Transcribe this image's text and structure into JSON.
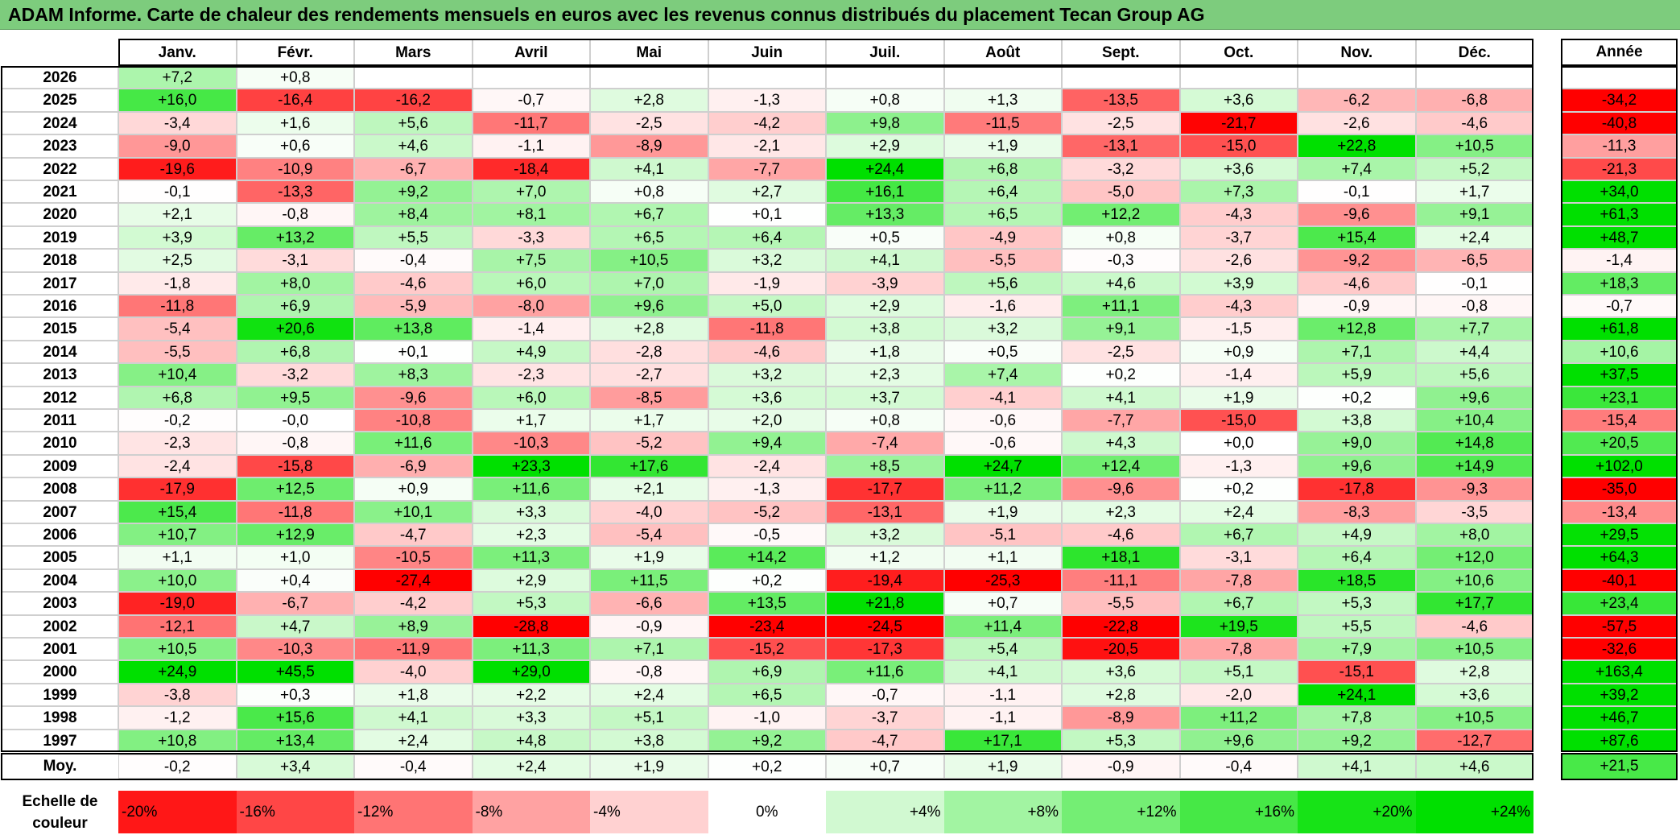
{
  "title": "ADAM Informe. Carte de chaleur des rendements mensuels en euros avec les revenus connus distribués du placement Tecan Group AG",
  "chart_data": {
    "type": "heatmap",
    "columns": [
      "Janv.",
      "Févr.",
      "Mars",
      "Avril",
      "Mai",
      "Juin",
      "Juil.",
      "Août",
      "Sept.",
      "Oct.",
      "Nov.",
      "Déc."
    ],
    "annual_header": "Année",
    "rows": [
      {
        "year": "2026",
        "values": [
          "+7,2",
          "+0,8",
          "",
          "",
          "",
          "",
          "",
          "",
          "",
          "",
          "",
          ""
        ],
        "annual": ""
      },
      {
        "year": "2025",
        "values": [
          "+16,0",
          "-16,4",
          "-16,2",
          "-0,7",
          "+2,8",
          "-1,3",
          "+0,8",
          "+1,3",
          "-13,5",
          "+3,6",
          "-6,2",
          "-6,8"
        ],
        "annual": "-34,2"
      },
      {
        "year": "2024",
        "values": [
          "-3,4",
          "+1,6",
          "+5,6",
          "-11,7",
          "-2,5",
          "-4,2",
          "+9,8",
          "-11,5",
          "-2,5",
          "-21,7",
          "-2,6",
          "-4,6"
        ],
        "annual": "-40,8"
      },
      {
        "year": "2023",
        "values": [
          "-9,0",
          "+0,6",
          "+4,6",
          "-1,1",
          "-8,9",
          "-2,1",
          "+2,9",
          "+1,9",
          "-13,1",
          "-15,0",
          "+22,8",
          "+10,5"
        ],
        "annual": "-11,3"
      },
      {
        "year": "2022",
        "values": [
          "-19,6",
          "-10,9",
          "-6,7",
          "-18,4",
          "+4,1",
          "-7,7",
          "+24,4",
          "+6,8",
          "-3,2",
          "+3,6",
          "+7,4",
          "+5,2"
        ],
        "annual": "-21,3"
      },
      {
        "year": "2021",
        "values": [
          "-0,1",
          "-13,3",
          "+9,2",
          "+7,0",
          "+0,8",
          "+2,7",
          "+16,1",
          "+6,4",
          "-5,0",
          "+7,3",
          "-0,1",
          "+1,7"
        ],
        "annual": "+34,0"
      },
      {
        "year": "2020",
        "values": [
          "+2,1",
          "-0,8",
          "+8,4",
          "+8,1",
          "+6,7",
          "+0,1",
          "+13,3",
          "+6,5",
          "+12,2",
          "-4,3",
          "-9,6",
          "+9,1"
        ],
        "annual": "+61,3"
      },
      {
        "year": "2019",
        "values": [
          "+3,9",
          "+13,2",
          "+5,5",
          "-3,3",
          "+6,5",
          "+6,4",
          "+0,5",
          "-4,9",
          "+0,8",
          "-3,7",
          "+15,4",
          "+2,4"
        ],
        "annual": "+48,7"
      },
      {
        "year": "2018",
        "values": [
          "+2,5",
          "-3,1",
          "-0,4",
          "+7,5",
          "+10,5",
          "+3,2",
          "+4,1",
          "-5,5",
          "-0,3",
          "-2,6",
          "-9,2",
          "-6,5"
        ],
        "annual": "-1,4"
      },
      {
        "year": "2017",
        "values": [
          "-1,8",
          "+8,0",
          "-4,6",
          "+6,0",
          "+7,0",
          "-1,9",
          "-3,9",
          "+5,6",
          "+4,6",
          "+3,9",
          "-4,6",
          "-0,1"
        ],
        "annual": "+18,3"
      },
      {
        "year": "2016",
        "values": [
          "-11,8",
          "+6,9",
          "-5,9",
          "-8,0",
          "+9,6",
          "+5,0",
          "+2,9",
          "-1,6",
          "+11,1",
          "-4,3",
          "-0,9",
          "-0,8"
        ],
        "annual": "-0,7"
      },
      {
        "year": "2015",
        "values": [
          "-5,4",
          "+20,6",
          "+13,8",
          "-1,4",
          "+2,8",
          "-11,8",
          "+3,8",
          "+3,2",
          "+9,1",
          "-1,5",
          "+12,8",
          "+7,7"
        ],
        "annual": "+61,8"
      },
      {
        "year": "2014",
        "values": [
          "-5,5",
          "+6,8",
          "+0,1",
          "+4,9",
          "-2,8",
          "-4,6",
          "+1,8",
          "+0,5",
          "-2,5",
          "+0,9",
          "+7,1",
          "+4,4"
        ],
        "annual": "+10,6"
      },
      {
        "year": "2013",
        "values": [
          "+10,4",
          "-3,2",
          "+8,3",
          "-2,3",
          "-2,7",
          "+3,2",
          "+2,3",
          "+7,4",
          "+0,2",
          "-1,4",
          "+5,9",
          "+5,6"
        ],
        "annual": "+37,5"
      },
      {
        "year": "2012",
        "values": [
          "+6,8",
          "+9,5",
          "-9,6",
          "+6,0",
          "-8,5",
          "+3,6",
          "+3,7",
          "-4,1",
          "+4,1",
          "+1,9",
          "+0,2",
          "+9,6"
        ],
        "annual": "+23,1"
      },
      {
        "year": "2011",
        "values": [
          "-0,2",
          "-0,0",
          "-10,8",
          "+1,7",
          "+1,7",
          "+2,0",
          "+0,8",
          "-0,6",
          "-7,7",
          "-15,0",
          "+3,8",
          "+10,4"
        ],
        "annual": "-15,4"
      },
      {
        "year": "2010",
        "values": [
          "-2,3",
          "-0,8",
          "+11,6",
          "-10,3",
          "-5,2",
          "+9,4",
          "-7,4",
          "-0,6",
          "+4,3",
          "+0,0",
          "+9,0",
          "+14,8"
        ],
        "annual": "+20,5"
      },
      {
        "year": "2009",
        "values": [
          "-2,4",
          "-15,8",
          "-6,9",
          "+23,3",
          "+17,6",
          "-2,4",
          "+8,5",
          "+24,7",
          "+12,4",
          "-1,3",
          "+9,6",
          "+14,9"
        ],
        "annual": "+102,0"
      },
      {
        "year": "2008",
        "values": [
          "-17,9",
          "+12,5",
          "+0,9",
          "+11,6",
          "+2,1",
          "-1,3",
          "-17,7",
          "+11,2",
          "-9,6",
          "+0,2",
          "-17,8",
          "-9,3"
        ],
        "annual": "-35,0"
      },
      {
        "year": "2007",
        "values": [
          "+15,4",
          "-11,8",
          "+10,1",
          "+3,3",
          "-4,0",
          "-5,2",
          "-13,1",
          "+1,9",
          "+2,3",
          "+2,4",
          "-8,3",
          "-3,5"
        ],
        "annual": "-13,4"
      },
      {
        "year": "2006",
        "values": [
          "+10,7",
          "+12,9",
          "-4,7",
          "+2,3",
          "-5,4",
          "-0,5",
          "+3,2",
          "-5,1",
          "-4,6",
          "+6,7",
          "+4,9",
          "+8,0"
        ],
        "annual": "+29,5"
      },
      {
        "year": "2005",
        "values": [
          "+1,1",
          "+1,0",
          "-10,5",
          "+11,3",
          "+1,9",
          "+14,2",
          "+1,2",
          "+1,1",
          "+18,1",
          "-3,1",
          "+6,4",
          "+12,0"
        ],
        "annual": "+64,3"
      },
      {
        "year": "2004",
        "values": [
          "+10,0",
          "+0,4",
          "-27,4",
          "+2,9",
          "+11,5",
          "+0,2",
          "-19,4",
          "-25,3",
          "-11,1",
          "-7,8",
          "+18,5",
          "+10,6"
        ],
        "annual": "-40,1"
      },
      {
        "year": "2003",
        "values": [
          "-19,0",
          "-6,7",
          "-4,2",
          "+5,3",
          "-6,6",
          "+13,5",
          "+21,8",
          "+0,7",
          "-5,5",
          "+6,7",
          "+5,3",
          "+17,7"
        ],
        "annual": "+23,4"
      },
      {
        "year": "2002",
        "values": [
          "-12,1",
          "+4,7",
          "+8,9",
          "-28,8",
          "-0,9",
          "-23,4",
          "-24,5",
          "+11,4",
          "-22,8",
          "+19,5",
          "+5,5",
          "-4,6"
        ],
        "annual": "-57,5"
      },
      {
        "year": "2001",
        "values": [
          "+10,5",
          "-10,3",
          "-11,9",
          "+11,3",
          "+7,1",
          "-15,2",
          "-17,3",
          "+5,4",
          "-20,5",
          "-7,8",
          "+7,9",
          "+10,5"
        ],
        "annual": "-32,6"
      },
      {
        "year": "2000",
        "values": [
          "+24,9",
          "+45,5",
          "-4,0",
          "+29,0",
          "-0,8",
          "+6,9",
          "+11,6",
          "+4,1",
          "+3,6",
          "+5,1",
          "-15,1",
          "+2,8"
        ],
        "annual": "+163,4"
      },
      {
        "year": "1999",
        "values": [
          "-3,8",
          "+0,3",
          "+1,8",
          "+2,2",
          "+2,4",
          "+6,5",
          "-0,7",
          "-1,1",
          "+2,8",
          "-2,0",
          "+24,1",
          "+3,6"
        ],
        "annual": "+39,2"
      },
      {
        "year": "1998",
        "values": [
          "-1,2",
          "+15,6",
          "+4,1",
          "+3,3",
          "+5,1",
          "-1,0",
          "-3,7",
          "-1,1",
          "-8,9",
          "+11,2",
          "+7,8",
          "+10,5"
        ],
        "annual": "+46,7"
      },
      {
        "year": "1997",
        "values": [
          "+10,8",
          "+13,4",
          "+2,4",
          "+4,8",
          "+3,8",
          "+9,2",
          "-4,7",
          "+17,1",
          "+5,3",
          "+9,6",
          "+9,2",
          "-12,7"
        ],
        "annual": "+87,6"
      }
    ],
    "average": {
      "label": "Moy.",
      "values": [
        "-0,2",
        "+3,4",
        "-0,4",
        "+2,4",
        "+1,9",
        "+0,2",
        "+0,7",
        "+1,9",
        "-0,9",
        "-0,4",
        "+4,1",
        "+4,6"
      ],
      "annual": "+21,5"
    },
    "color_scale": {
      "label": "Echelle de couleur",
      "stops": [
        "-20%",
        "-16%",
        "-12%",
        "-8%",
        "-4%",
        "0%",
        "+4%",
        "+8%",
        "+12%",
        "+16%",
        "+20%",
        "+24%"
      ],
      "negative_color": "#ff0000",
      "positive_color": "#00e000",
      "neutral_color": "#ffffff"
    }
  }
}
